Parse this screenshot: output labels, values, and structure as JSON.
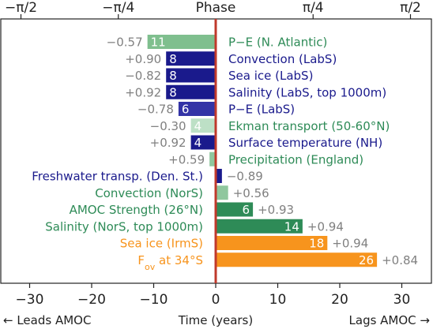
{
  "chart_data": {
    "type": "bar",
    "orientation": "horizontal",
    "xlabel": "Time (years)",
    "x_note_left": "← Leads AMOC",
    "x_note_right": "Lags AMOC →",
    "top_axis_label": "Phase",
    "xlim": [
      -34,
      35
    ],
    "xticks": [
      -30,
      -20,
      -10,
      0,
      10,
      20,
      30
    ],
    "xtick_labels": [
      "−30",
      "−20",
      "−10",
      "0",
      "10",
      "20",
      "30"
    ],
    "top_ticks": [
      -31.4,
      -15.7,
      15.7,
      31.4
    ],
    "top_tick_labels": [
      "−π/2",
      "−π/4",
      "π/4",
      "π/2"
    ],
    "zero_line_color": "#c0392b",
    "series": [
      {
        "label": "P−E (N. Atlantic)",
        "value": -11,
        "bar_label": "11",
        "correlation": "−0.57",
        "color": "#7fbf8e",
        "text_color": "#2e8b57"
      },
      {
        "label": "Convection (LabS)",
        "value": -8,
        "bar_label": "8",
        "correlation": "+0.90",
        "color": "#1a1a8c",
        "text_color": "#1a1a8c"
      },
      {
        "label": "Sea ice (LabS)",
        "value": -8,
        "bar_label": "8",
        "correlation": "−0.82",
        "color": "#1a1a8c",
        "text_color": "#1a1a8c"
      },
      {
        "label": "Salinity (LabS, top 1000m)",
        "value": -8,
        "bar_label": "8",
        "correlation": "+0.92",
        "color": "#1a1a8c",
        "text_color": "#1a1a8c"
      },
      {
        "label": "P−E (LabS)",
        "value": -6,
        "bar_label": "6",
        "correlation": "−0.78",
        "color": "#3333a6",
        "text_color": "#1a1a8c"
      },
      {
        "label": "Ekman transport (50-60°N)",
        "value": -4,
        "bar_label": "4",
        "correlation": "−0.30",
        "color": "#bde0c6",
        "text_color": "#2e8b57"
      },
      {
        "label": "Surface temperature (NH)",
        "value": -4,
        "bar_label": "4",
        "correlation": "+0.92",
        "color": "#1a1a8c",
        "text_color": "#1a1a8c"
      },
      {
        "label": "Precipitation (England)",
        "value": -1,
        "bar_label": "",
        "correlation": "+0.59",
        "color": "#8fc79e",
        "text_color": "#2e8b57"
      },
      {
        "label": "Freshwater transp. (Den. St.)",
        "value": 1,
        "bar_label": "",
        "correlation": "−0.89",
        "color": "#1a1a8c",
        "text_color": "#1a1a8c"
      },
      {
        "label": "Convection (NorS)",
        "value": 2,
        "bar_label": "",
        "correlation": "+0.56",
        "color": "#8fc79e",
        "text_color": "#2e8b57"
      },
      {
        "label": "AMOC Strength (26°N)",
        "value": 6,
        "bar_label": "6",
        "correlation": "+0.93",
        "color": "#2e8b57",
        "text_color": "#2e8b57"
      },
      {
        "label": "Salinity (NorS, top 1000m)",
        "value": 14,
        "bar_label": "14",
        "correlation": "+0.94",
        "color": "#2e8b57",
        "text_color": "#2e8b57"
      },
      {
        "label": "Sea ice (IrmS)",
        "value": 18,
        "bar_label": "18",
        "correlation": "+0.94",
        "color": "#f7941d",
        "text_color": "#f7941d"
      },
      {
        "label": "F",
        "label_sub": "ov",
        "label_tail": " at 34°S",
        "value": 26,
        "bar_label": "26",
        "correlation": "+0.84",
        "color": "#f7941d",
        "text_color": "#f7941d"
      }
    ]
  }
}
